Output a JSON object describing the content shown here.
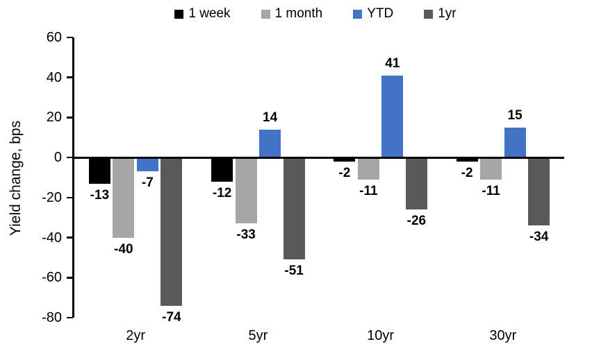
{
  "chart_data": {
    "type": "bar",
    "title": "",
    "ylabel": "Yield change, bps",
    "xlabel": "",
    "categories": [
      "2yr",
      "5yr",
      "10yr",
      "30yr"
    ],
    "series": [
      {
        "name": "1 week",
        "color": "#000000",
        "values": [
          -13,
          -12,
          -2,
          -2
        ]
      },
      {
        "name": "1 month",
        "color": "#A6A6A6",
        "values": [
          -40,
          -33,
          -11,
          -11
        ]
      },
      {
        "name": "YTD",
        "color": "#4472C4",
        "values": [
          -7,
          14,
          41,
          15
        ]
      },
      {
        "name": "1yr",
        "color": "#595959",
        "values": [
          -74,
          -51,
          -26,
          -34
        ]
      }
    ],
    "ylim": [
      -80,
      60
    ],
    "yticks": [
      60,
      40,
      20,
      0,
      -20,
      -40,
      -60,
      -80
    ],
    "grid": false,
    "legend_position": "top",
    "data_labels": true,
    "axis_color": "#000000"
  }
}
